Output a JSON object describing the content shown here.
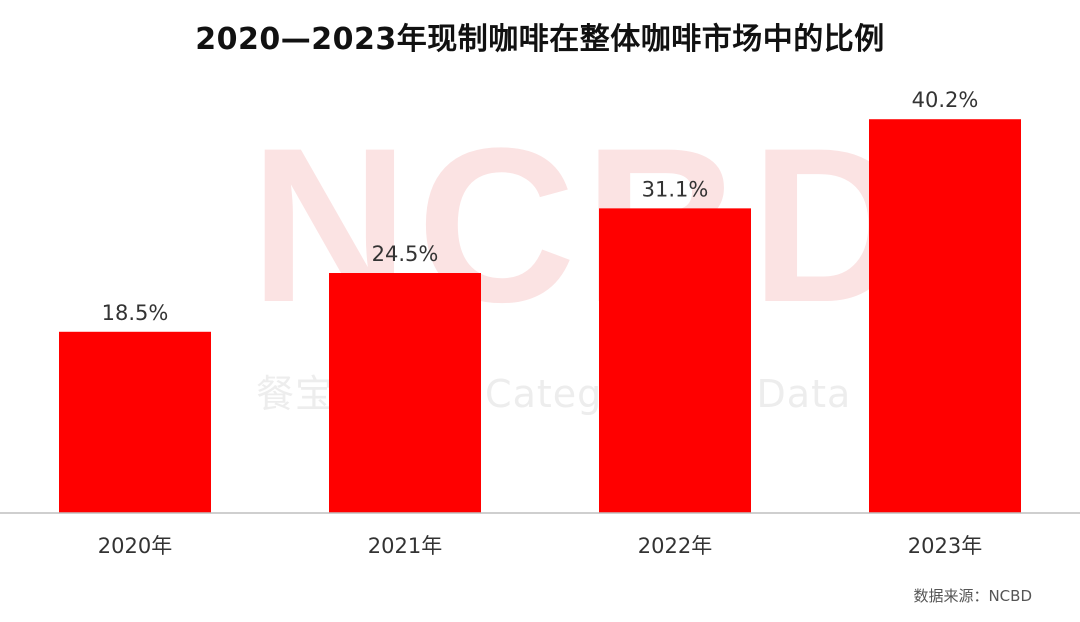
{
  "title": "2020—2023年现制咖啡在整体咖啡市场中的比例",
  "watermark": {
    "logo": "NCBD",
    "subtitle": "餐宝典 New Category Big Data"
  },
  "source": "数据来源：NCBD",
  "colors": {
    "bar": "#ff0000",
    "axis": "#bfbfbf",
    "label": "#333333"
  },
  "chart_data": {
    "type": "bar",
    "title": "2020—2023年现制咖啡在整体咖啡市场中的比例",
    "categories": [
      "2020年",
      "2021年",
      "2022年",
      "2023年"
    ],
    "values": [
      18.5,
      24.5,
      31.1,
      40.2
    ],
    "data_labels": [
      "18.5%",
      "24.5%",
      "31.1%",
      "40.2%"
    ],
    "unit": "%",
    "xlabel": "",
    "ylabel": "",
    "ylim": [
      0,
      44
    ],
    "grid": false,
    "legend": "none"
  }
}
